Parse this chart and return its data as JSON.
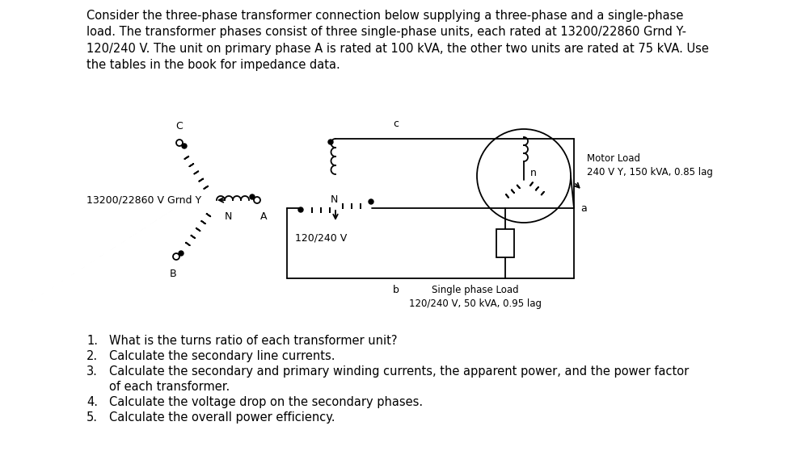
{
  "background_color": "#ffffff",
  "title_paragraph": "Consider the three-phase transformer connection below supplying a three-phase and a single-phase\nload. The transformer phases consist of three single-phase units, each rated at 13200/22860 Grnd Y-\n120/240 V. The unit on primary phase A is rated at 100 kVA, the other two units are rated at 75 kVA. Use\nthe tables in the book for impedance data.",
  "label_primary": "13200/22860 V Grnd Y",
  "label_secondary": "120/240 V",
  "label_C": "C",
  "label_c": "c",
  "label_a": "a",
  "label_b": "b",
  "label_N_primary": "N",
  "label_A": "A",
  "label_N_secondary": "N",
  "label_n": "n",
  "label_B": "B",
  "motor_load_line1": "Motor Load",
  "motor_load_line2": "240 V Y, 150 kVA, 0.85 lag",
  "single_phase_load_line1": "Single phase Load",
  "single_phase_load_line2": "120/240 V, 50 kVA, 0.95 lag",
  "text_color": "#000000",
  "line_color": "#000000",
  "font_size_body": 10.5,
  "font_size_label": 9.0,
  "font_size_small": 8.5,
  "font_size_question": 10.5
}
